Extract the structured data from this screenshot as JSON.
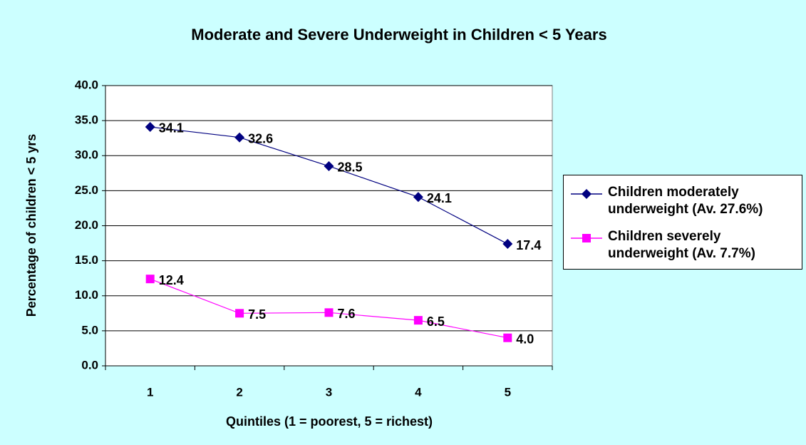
{
  "chart_data": {
    "type": "line",
    "title": "Moderate and Severe Underweight in Children < 5 Years",
    "xlabel": "Quintiles (1 = poorest, 5 = richest)",
    "ylabel": "Percentage of children < 5 yrs",
    "categories": [
      "1",
      "2",
      "3",
      "4",
      "5"
    ],
    "series": [
      {
        "name": "Children moderately underweight (Av. 27.6%)",
        "color": "#000080",
        "marker": "diamond",
        "values": [
          34.1,
          32.6,
          28.5,
          24.1,
          17.4
        ],
        "value_labels": [
          "34.1",
          "32.6",
          "28.5",
          "24.1",
          "17.4"
        ]
      },
      {
        "name": "Children severely underweight (Av. 7.7%)",
        "color": "#ff00ff",
        "marker": "square",
        "values": [
          12.4,
          7.5,
          7.6,
          6.5,
          4.0
        ],
        "value_labels": [
          "12.4",
          "7.5",
          "7.6",
          "6.5",
          "4.0"
        ]
      }
    ],
    "ylim": [
      0,
      40
    ],
    "yticks": [
      {
        "value": 0,
        "label": "0.0"
      },
      {
        "value": 5,
        "label": "5.0"
      },
      {
        "value": 10,
        "label": "10.0"
      },
      {
        "value": 15,
        "label": "15.0"
      },
      {
        "value": 20,
        "label": "20.0"
      },
      {
        "value": 25,
        "label": "25.0"
      },
      {
        "value": 30,
        "label": "30.0"
      },
      {
        "value": 35,
        "label": "35.0"
      },
      {
        "value": 40,
        "label": "40.0"
      }
    ],
    "grid": true,
    "legend": "right"
  }
}
